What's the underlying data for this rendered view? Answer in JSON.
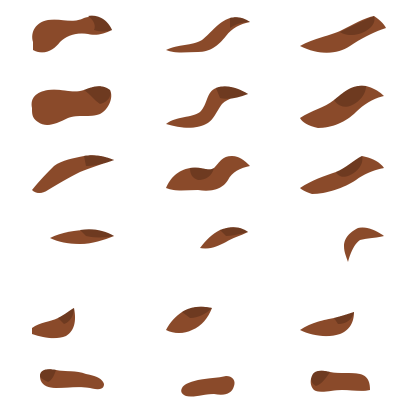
{
  "sprite_sheet": {
    "background": "#ffffff",
    "colors": {
      "body": "#8a4a2a",
      "shade": "#6e3a20",
      "highlight": "#9c5834"
    },
    "frame_count": 18,
    "rows": 6,
    "columns": 3
  }
}
